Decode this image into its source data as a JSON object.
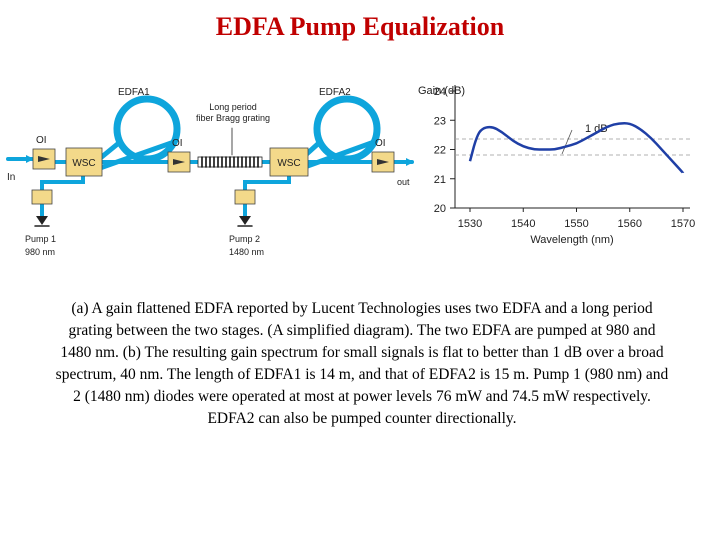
{
  "title": "EDFA Pump Equalization",
  "schematic": {
    "edfa1": "EDFA1",
    "edfa2": "EDFA2",
    "grating_line1": "Long period",
    "grating_line2": "fiber Bragg grating",
    "oi": "OI",
    "wsc": "WSC",
    "in": "In",
    "out": "out",
    "pump1_line1": "Pump 1",
    "pump1_line2": "980 nm",
    "pump2_line1": "Pump 2",
    "pump2_line2": "1480 nm"
  },
  "colors": {
    "title": "#c00000",
    "fiber": "#0ea5dc",
    "box": "#f3d98a",
    "curve": "#1f3fa6"
  },
  "chart_data": {
    "type": "line",
    "ylabel": "Gain (dB)",
    "xlabel": "Wavelength (nm)",
    "yticks": [
      "24",
      "23",
      "22",
      "21",
      "20"
    ],
    "xticks": [
      "1530",
      "1540",
      "1550",
      "1560",
      "1570"
    ],
    "ylim": [
      20,
      24
    ],
    "xlim": [
      1530,
      1570
    ],
    "annotation": "1 dB",
    "series": [
      {
        "x": [
          1530,
          1531,
          1532,
          1534,
          1536,
          1538,
          1540,
          1542,
          1544,
          1546,
          1548,
          1550,
          1552,
          1554,
          1556,
          1558,
          1560,
          1562,
          1564,
          1566,
          1568,
          1570
        ],
        "y": [
          21.6,
          22.3,
          22.7,
          22.8,
          22.6,
          22.3,
          22.1,
          22.0,
          22.0,
          22.0,
          22.1,
          22.2,
          22.4,
          22.6,
          22.8,
          22.9,
          22.9,
          22.7,
          22.4,
          22.0,
          21.6,
          21.2
        ]
      }
    ]
  },
  "caption": "(a) A gain flattened EDFA reported by Lucent Technologies uses two EDFA and a long period grating between the two stages. (A simplified diagram). The two EDFA are pumped at 980 and 1480 nm. (b) The resulting gain spectrum for small signals is flat to better than 1 dB over a broad spectrum, 40 nm. The length of EDFA1 is 14 m, and that of EDFA2 is 15 m. Pump 1 (980 nm) and 2 (1480 nm) diodes were operated at most at power levels 76 mW and 74.5 mW respectively. EDFA2 can also be pumped counter directionally."
}
